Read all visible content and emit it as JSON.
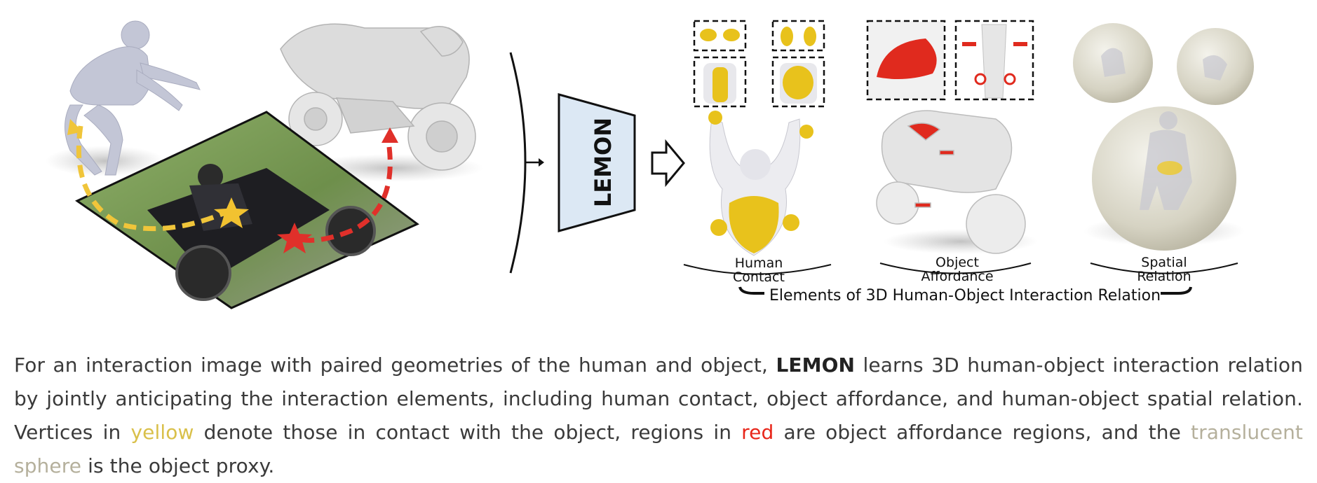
{
  "figure": {
    "encoder_label": "LEMON",
    "groups": [
      {
        "line1": "Human",
        "line2": "Contact"
      },
      {
        "line1": "Object",
        "line2": "Affordance"
      },
      {
        "line1": "Spatial",
        "line2": "Relation"
      }
    ],
    "brace_label": "Elements of 3D Human-Object Interaction Relation"
  },
  "caption": {
    "p1": "For an interaction image with paired geometries of the human and object, ",
    "lemon": "LEMON",
    "p2": " learns 3D human-object interaction relation by jointly anticipating the interaction elements, including human contact, object affordance, and human-object spatial relation. Vertices in ",
    "yellow": "yellow",
    "p3": " denote those in contact with the object, regions in ",
    "red": "red",
    "p4": " are object affordance regions, and the ",
    "translucent": "translucent sphere",
    "p5": " is the object proxy."
  },
  "colors": {
    "contact": "#e8c21c",
    "affordance": "#e02a1e",
    "sphere": "#d8d6c8",
    "encoder_fill": "#dce8f4"
  }
}
